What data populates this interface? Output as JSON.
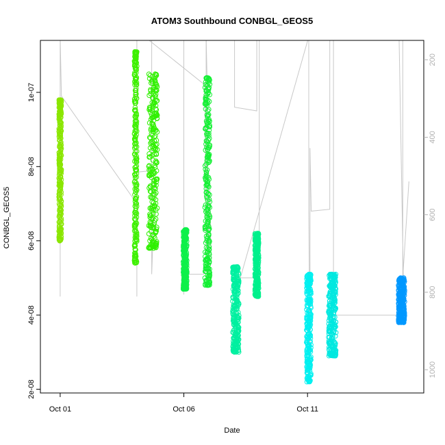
{
  "chart_data": {
    "type": "scatter",
    "title": "ATOM3 Southbound CONBGL_GEOS5",
    "xlabel": "Date",
    "ylabel": "CONBGL_GEOS5",
    "x_domain_days": [
      -0.8,
      14.7
    ],
    "xlim_labels": [
      "Oct 01",
      "Oct 06",
      "Oct 11"
    ],
    "x_ticks": [
      {
        "day": 0,
        "label": "Oct 01"
      },
      {
        "day": 5,
        "label": "Oct 06"
      },
      {
        "day": 10,
        "label": "Oct 11"
      }
    ],
    "ylim": [
      1.9e-08,
      1.14e-07
    ],
    "y_ticks": [
      {
        "value": 2e-08,
        "label": "2e-08"
      },
      {
        "value": 4e-08,
        "label": "4e-08"
      },
      {
        "value": 6e-08,
        "label": "6e-08"
      },
      {
        "value": 8e-08,
        "label": "8e-08"
      },
      {
        "value": 1e-07,
        "label": "1e-07"
      }
    ],
    "right_axis": {
      "reversed": true,
      "range": [
        150,
        1060
      ],
      "ticks": [
        {
          "value": 200,
          "label": "200"
        },
        {
          "value": 400,
          "label": "400"
        },
        {
          "value": 600,
          "label": "600"
        },
        {
          "value": 800,
          "label": "800"
        },
        {
          "value": 1000,
          "label": "1000"
        }
      ]
    },
    "colors": {
      "line": "#c8c8c8",
      "right_axis": "#b0b0b0"
    },
    "point_clusters": [
      {
        "day": 0.0,
        "width": 0.1,
        "ymin": 6e-08,
        "ymax": 9.8e-08,
        "color": "#8ae600"
      },
      {
        "day": 3.05,
        "width": 0.1,
        "ymin": 5.4e-08,
        "ymax": 1.11e-07,
        "color": "#3ef000"
      },
      {
        "day": 3.75,
        "width": 0.35,
        "ymin": 5.8e-08,
        "ymax": 1.05e-07,
        "color": "#30f000"
      },
      {
        "day": 5.05,
        "width": 0.15,
        "ymin": 4.7e-08,
        "ymax": 6.3e-08,
        "color": "#0ef04a"
      },
      {
        "day": 5.95,
        "width": 0.2,
        "ymin": 4.8e-08,
        "ymax": 1.04e-07,
        "color": "#14f034"
      },
      {
        "day": 7.1,
        "width": 0.25,
        "ymin": 3e-08,
        "ymax": 5.3e-08,
        "color": "#00f0a0"
      },
      {
        "day": 7.95,
        "width": 0.15,
        "ymin": 4.5e-08,
        "ymax": 6.2e-08,
        "color": "#00f08c"
      },
      {
        "day": 10.05,
        "width": 0.18,
        "ymin": 2.2e-08,
        "ymax": 5.1e-08,
        "color": "#00f0f0"
      },
      {
        "day": 11.0,
        "width": 0.3,
        "ymin": 2.9e-08,
        "ymax": 5.1e-08,
        "color": "#00e8e0"
      },
      {
        "day": 13.8,
        "width": 0.25,
        "ymin": 3.8e-08,
        "ymax": 5e-08,
        "color": "#0098ff"
      }
    ],
    "gray_line_polyline": [
      [
        0.0,
        9.9e-08
      ],
      [
        0.0,
        4.5e-08
      ],
      [
        0.0,
        1.15e-07
      ],
      [
        0.05,
        9.9e-08
      ],
      [
        3.1,
        7e-08
      ],
      [
        3.1,
        4.5e-08
      ],
      [
        3.1,
        1.14e-07
      ],
      [
        3.1,
        7.85e-08
      ],
      [
        3.85,
        7.9e-08
      ],
      [
        3.7,
        5.1e-08
      ],
      [
        3.7,
        1.15e-07
      ],
      [
        3.6,
        1.14e-07
      ],
      [
        5.85,
        1.02e-07
      ],
      [
        5.9,
        5.5e-08
      ],
      [
        5.9,
        1.15e-07
      ],
      [
        5.95,
        1e-07
      ],
      [
        6.0,
        4.8e-08
      ],
      [
        6.05,
        7.5e-08
      ],
      [
        6.1,
        5.5e-08
      ],
      [
        5.8,
        5.1e-08
      ],
      [
        5.0,
        5.1e-08
      ],
      [
        5.0,
        4.55e-08
      ],
      [
        5.0,
        1.15e-07
      ],
      [
        7.05,
        1.15e-07
      ],
      [
        7.05,
        9.6e-08
      ],
      [
        7.95,
        9.5e-08
      ],
      [
        7.95,
        1.15e-07
      ],
      [
        8.05,
        1.15e-07
      ],
      [
        8.05,
        5e-08
      ],
      [
        7.2,
        5e-08
      ],
      [
        7.2,
        4.8e-08
      ],
      [
        10.05,
        1.15e-07
      ],
      [
        10.05,
        6.8e-08
      ],
      [
        10.1,
        2.8e-08
      ],
      [
        10.1,
        8.5e-08
      ],
      [
        10.15,
        6.8e-08
      ],
      [
        10.9,
        6.85e-08
      ],
      [
        10.9,
        1.15e-07
      ],
      [
        11.05,
        1.15e-07
      ],
      [
        11.05,
        4e-08
      ],
      [
        13.9,
        4e-08
      ],
      [
        13.7,
        1.15e-07
      ],
      [
        13.85,
        1.15e-07
      ],
      [
        13.85,
        5e-08
      ],
      [
        14.1,
        7.6e-08
      ]
    ]
  }
}
